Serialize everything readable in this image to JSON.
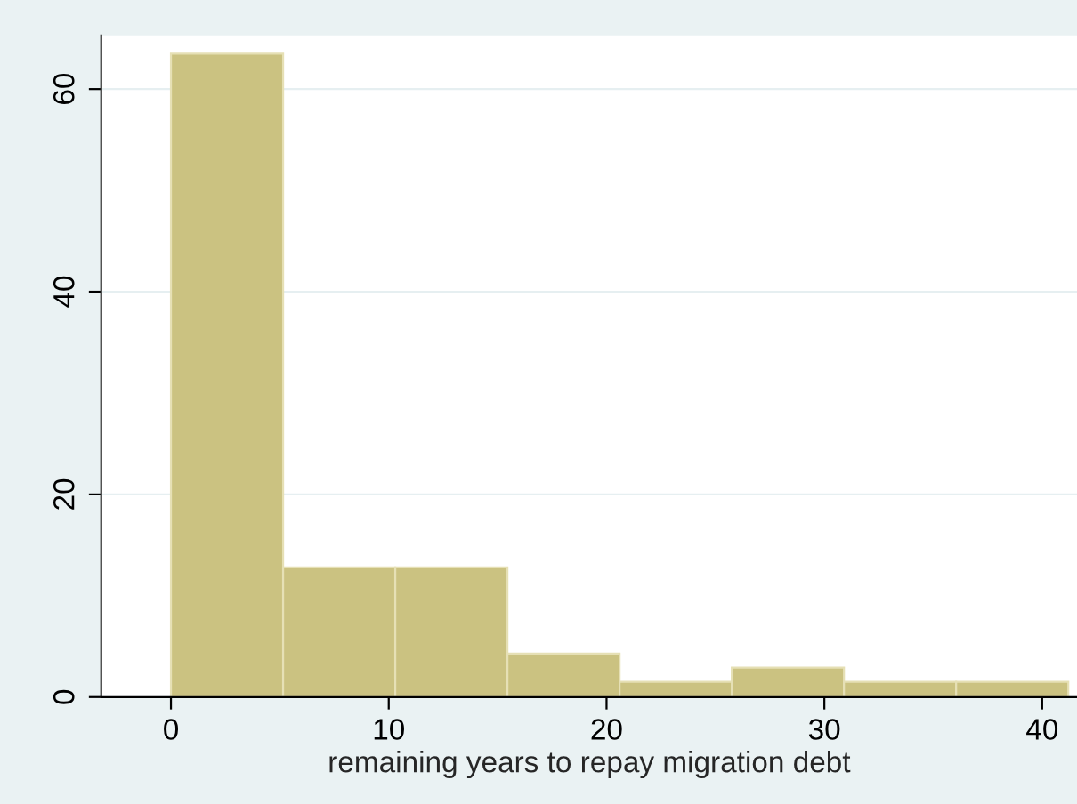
{
  "chart_data": {
    "type": "histogram",
    "xlabel": "remaining years to repay migration debt",
    "bins": [
      0,
      5.15,
      10.3,
      15.45,
      20.6,
      25.75,
      30.9,
      36.05,
      41.2
    ],
    "values": [
      63.5,
      12.8,
      12.8,
      4.3,
      1.5,
      2.9,
      1.5,
      1.5
    ],
    "color": "#cbc281",
    "xlim": [
      -3.2,
      41.6
    ],
    "xticks": [
      0,
      10,
      20,
      30,
      40
    ],
    "ylim": [
      0,
      65.3
    ],
    "yticks": [
      0,
      20,
      40,
      60
    ],
    "grid": "y"
  }
}
